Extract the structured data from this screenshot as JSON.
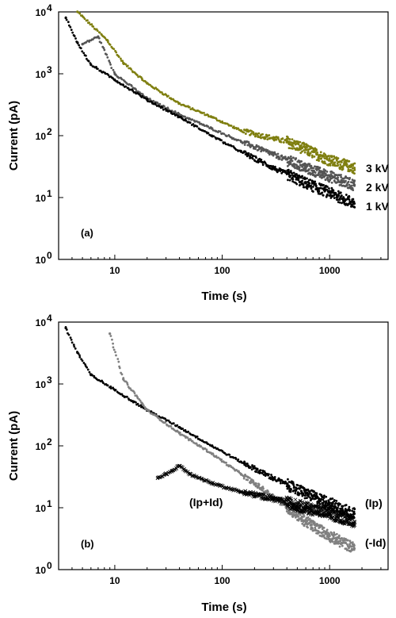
{
  "chart_data": [
    {
      "type": "scatter",
      "panel_label": "(a)",
      "xlabel": "Time (s)",
      "ylabel": "Current (pA)",
      "xscale": "log",
      "yscale": "log",
      "xlim": [
        3,
        3500
      ],
      "ylim": [
        1,
        10000
      ],
      "x_ticks": [
        10,
        100,
        1000
      ],
      "x_tick_labels": [
        "10",
        "100",
        "1000"
      ],
      "y_ticks": [
        1,
        10,
        100,
        1000,
        10000
      ],
      "y_tick_labels": [
        {
          "base": "10",
          "exp": "0"
        },
        {
          "base": "10",
          "exp": "1"
        },
        {
          "base": "10",
          "exp": "2"
        },
        {
          "base": "10",
          "exp": "3"
        },
        {
          "base": "10",
          "exp": "4"
        }
      ],
      "series": [
        {
          "name": "3 kV",
          "color": "#7f7f10",
          "x": [
            4.5,
            8.5,
            12,
            20,
            40,
            80,
            150,
            300,
            400,
            600,
            1000,
            1700
          ],
          "y": [
            10000,
            3500,
            1500,
            700,
            330,
            200,
            120,
            90,
            80,
            60,
            40,
            30
          ]
        },
        {
          "name": "2 kV",
          "color": "#555555",
          "x": [
            5,
            7,
            10,
            20,
            40,
            80,
            150,
            300,
            600,
            1000,
            1700
          ],
          "y": [
            3000,
            4000,
            1000,
            400,
            220,
            130,
            80,
            50,
            30,
            22,
            16
          ]
        },
        {
          "name": "1 kV",
          "color": "#000000",
          "x": [
            3.5,
            4.5,
            6,
            10,
            20,
            40,
            80,
            150,
            300,
            600,
            1000,
            1700
          ],
          "y": [
            8000,
            3200,
            1400,
            800,
            380,
            200,
            100,
            55,
            30,
            17,
            12,
            8
          ]
        }
      ],
      "annotations": [
        "3 kV",
        "2 kV",
        "1 kV"
      ]
    },
    {
      "type": "scatter",
      "panel_label": "(b)",
      "xlabel": "Time (s)",
      "ylabel": "Current (pA)",
      "xscale": "log",
      "yscale": "log",
      "xlim": [
        3,
        3500
      ],
      "ylim": [
        1,
        10000
      ],
      "x_ticks": [
        10,
        100,
        1000
      ],
      "x_tick_labels": [
        "10",
        "100",
        "1000"
      ],
      "y_ticks": [
        1,
        10,
        100,
        1000,
        10000
      ],
      "y_tick_labels": [
        {
          "base": "10",
          "exp": "0"
        },
        {
          "base": "10",
          "exp": "1"
        },
        {
          "base": "10",
          "exp": "2"
        },
        {
          "base": "10",
          "exp": "3"
        },
        {
          "base": "10",
          "exp": "4"
        }
      ],
      "series": [
        {
          "name": "(Ip)",
          "color": "#000000",
          "x": [
            3.5,
            4.5,
            6,
            10,
            20,
            40,
            80,
            150,
            300,
            600,
            1000,
            1700
          ],
          "y": [
            8000,
            3200,
            1400,
            800,
            380,
            200,
            100,
            55,
            30,
            17,
            12,
            8
          ]
        },
        {
          "name": "(-Id)",
          "color": "#808080",
          "x": [
            9,
            12,
            20,
            40,
            80,
            150,
            300,
            600,
            1000,
            1700
          ],
          "y": [
            6500,
            1200,
            380,
            160,
            75,
            35,
            15,
            6,
            3.5,
            2.2
          ]
        },
        {
          "name": "(Ip+Id)",
          "color": "#000000",
          "marker": "x",
          "x": [
            25,
            30,
            35,
            40,
            50,
            80,
            150,
            300,
            600,
            1000,
            1700
          ],
          "y": [
            30,
            35,
            40,
            48,
            35,
            25,
            18,
            14,
            10,
            8,
            6
          ]
        }
      ],
      "annotations": [
        "(Ip+Id)",
        "(Ip)",
        "(-Id)"
      ]
    }
  ]
}
